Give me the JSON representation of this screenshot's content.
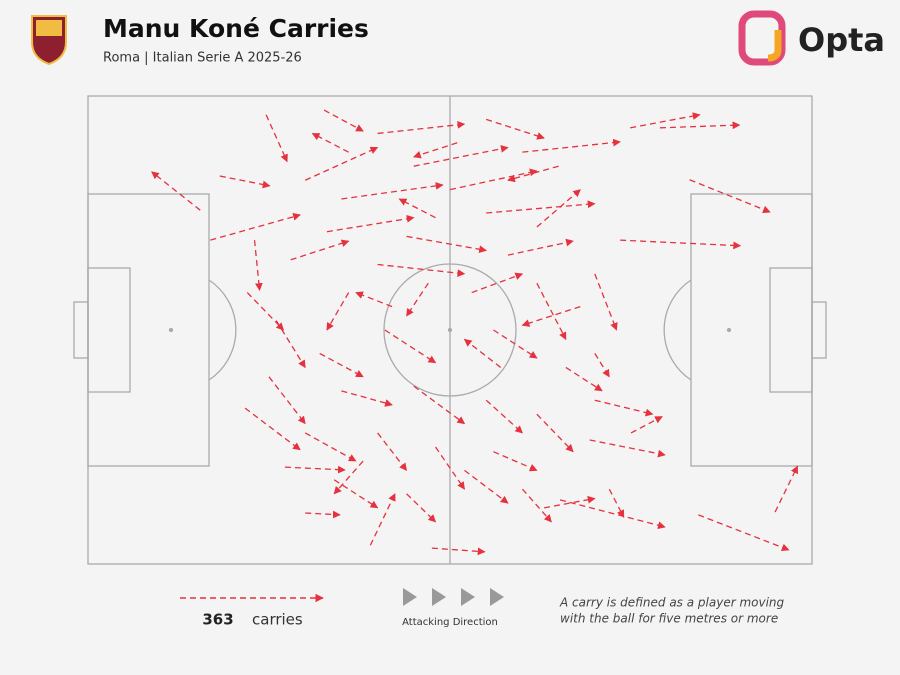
{
  "chart_data": {
    "type": "carry-map",
    "title": "Manu Koné Carries",
    "subtitle": "Roma | Italian Serie A 2025-26",
    "logo_text": "Opta",
    "carry_count": 363,
    "count_label": "carries",
    "direction_label": "Attacking Direction",
    "note": [
      "A carry is defined as a player moving",
      "with the ball for five metres or more"
    ],
    "color": "#e5323e",
    "xlim": [
      0,
      100
    ],
    "ylim": [
      0,
      100
    ],
    "y_inverted": true,
    "carries": [
      [
        15.5,
        24.4,
        8.8,
        16.2
      ],
      [
        84.3,
        89.5,
        96.8,
        97
      ],
      [
        94.9,
        88.9,
        98,
        79.1
      ],
      [
        47.5,
        96.6,
        54.8,
        97.4
      ],
      [
        30,
        89.1,
        34.8,
        89.5
      ],
      [
        27.2,
        79.3,
        35.5,
        79.9
      ],
      [
        74.9,
        6.8,
        84.5,
        4
      ],
      [
        79,
        6.8,
        90,
        6.2
      ],
      [
        83.1,
        17.9,
        94.2,
        24.8
      ],
      [
        73.5,
        30.8,
        90.1,
        32
      ],
      [
        69.3,
        73.5,
        79.7,
        76.7
      ],
      [
        65.2,
        86.3,
        79.7,
        92.1
      ],
      [
        39,
        96,
        42.4,
        85
      ],
      [
        16.9,
        30.8,
        29.3,
        25.4
      ],
      [
        23,
        30.8,
        23.7,
        41.5
      ],
      [
        21.7,
        66.7,
        29.3,
        75.6
      ],
      [
        18.2,
        17.1,
        25.1,
        19.2
      ],
      [
        24.6,
        4,
        27.5,
        14
      ],
      [
        32.6,
        3,
        38,
        7.5
      ],
      [
        40,
        8,
        52,
        6
      ],
      [
        55,
        5,
        63,
        9
      ],
      [
        60,
        12,
        73.5,
        9.8
      ],
      [
        45,
        15,
        58,
        11
      ],
      [
        30,
        18,
        40,
        11
      ],
      [
        35,
        22,
        49,
        19
      ],
      [
        50,
        20,
        62,
        16
      ],
      [
        55,
        25,
        70,
        23
      ],
      [
        62,
        28,
        68,
        20
      ],
      [
        33,
        29,
        45,
        26
      ],
      [
        28,
        35,
        36,
        31
      ],
      [
        44,
        30,
        55,
        33
      ],
      [
        58,
        34,
        67,
        31
      ],
      [
        40,
        36,
        52,
        38
      ],
      [
        36,
        42,
        33,
        50
      ],
      [
        47,
        40,
        44,
        47
      ],
      [
        53,
        42,
        60,
        38
      ],
      [
        62,
        40,
        66,
        52
      ],
      [
        70,
        38,
        73,
        50
      ],
      [
        32,
        55,
        38,
        60
      ],
      [
        41,
        50,
        48,
        57
      ],
      [
        56,
        50,
        62,
        56
      ],
      [
        66,
        58,
        71,
        63
      ],
      [
        25,
        60,
        30,
        70
      ],
      [
        35,
        63,
        42,
        66
      ],
      [
        45,
        62,
        52,
        70
      ],
      [
        55,
        65,
        60,
        72
      ],
      [
        62,
        68,
        67,
        76
      ],
      [
        30,
        72,
        37,
        78
      ],
      [
        40,
        72,
        44,
        80
      ],
      [
        48,
        75,
        52,
        84
      ],
      [
        56,
        76,
        62,
        80
      ],
      [
        70,
        65,
        78,
        68
      ],
      [
        75,
        72,
        79.3,
        68.5
      ],
      [
        34,
        82,
        40,
        88
      ],
      [
        44,
        85,
        48,
        91
      ],
      [
        52,
        80,
        58,
        87
      ],
      [
        60,
        84,
        64,
        91
      ],
      [
        72,
        84,
        74,
        90
      ],
      [
        38,
        78,
        34,
        85
      ],
      [
        26,
        48,
        30,
        58
      ],
      [
        22,
        42,
        27,
        50
      ],
      [
        48,
        26,
        43,
        22
      ],
      [
        65,
        15,
        58,
        18
      ],
      [
        68,
        45,
        60,
        49
      ],
      [
        57,
        58,
        52,
        52
      ],
      [
        42,
        45,
        37,
        42
      ],
      [
        51,
        10,
        45,
        13
      ],
      [
        36,
        12,
        31,
        8
      ],
      [
        70,
        55,
        72,
        60
      ],
      [
        63,
        88,
        70,
        86
      ]
    ]
  }
}
